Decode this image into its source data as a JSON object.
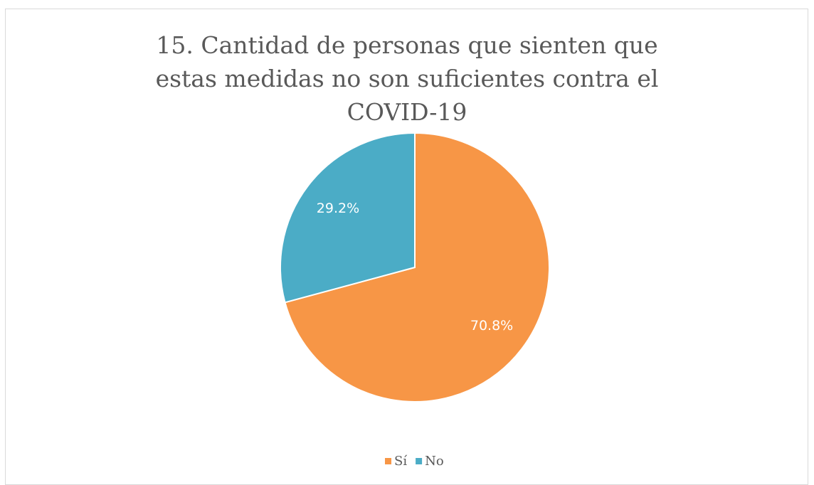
{
  "chart_data": {
    "type": "pie",
    "title": "15. Cantidad de personas que sienten que estas medidas no son suficientes contra el COVID-19",
    "categories": [
      "Sí",
      "No"
    ],
    "values": [
      70.8,
      29.2
    ],
    "value_labels": [
      "70.8%",
      "29.2%"
    ],
    "colors": [
      "#F79646",
      "#4BACC6"
    ],
    "legend": "bottom"
  }
}
